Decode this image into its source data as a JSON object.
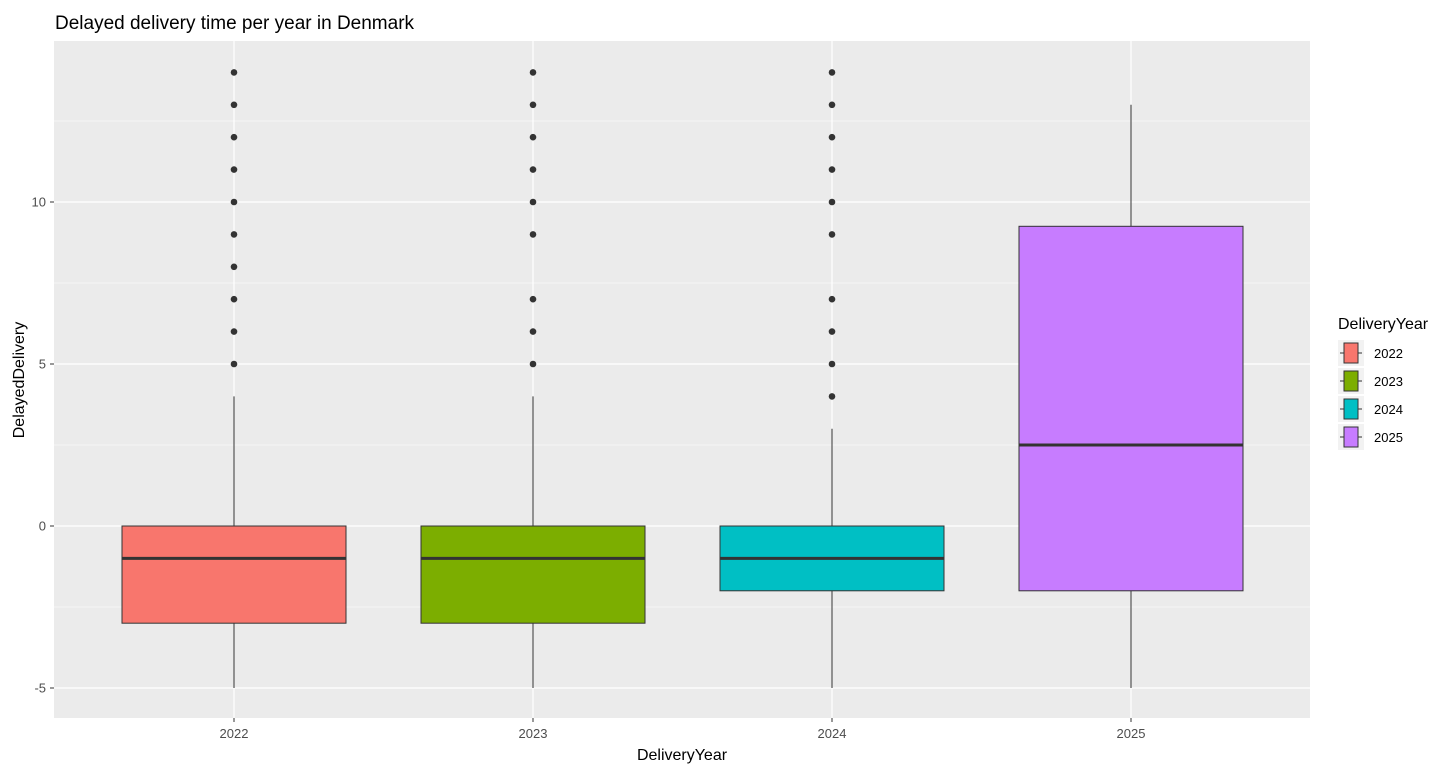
{
  "chart_data": {
    "type": "boxplot",
    "title": "Delayed delivery time per year in Denmark",
    "xlabel": "DeliveryYear",
    "ylabel": "DelayedDelivery",
    "ylim": [
      -6,
      14.5
    ],
    "y_ticks": [
      -5,
      0,
      5,
      10
    ],
    "y_tick_labels": [
      "-5",
      "0",
      "5",
      "10"
    ],
    "categories": [
      "2022",
      "2023",
      "2024",
      "2025"
    ],
    "boxes": [
      {
        "category": "2022",
        "fill": "#F8766D",
        "whisker_low": -5,
        "q1": -3,
        "median": -1,
        "q3": 0,
        "whisker_high": 4,
        "outliers": [
          5,
          6,
          7,
          8,
          9,
          10,
          11,
          12,
          13,
          14
        ]
      },
      {
        "category": "2023",
        "fill": "#7CAE00",
        "whisker_low": -5,
        "q1": -3,
        "median": -1,
        "q3": 0,
        "whisker_high": 4,
        "outliers": [
          5,
          6,
          7,
          9,
          10,
          11,
          12,
          13,
          14
        ]
      },
      {
        "category": "2024",
        "fill": "#00BFC4",
        "whisker_low": -5,
        "q1": -2,
        "median": -1,
        "q3": 0,
        "whisker_high": 3,
        "outliers": [
          4,
          5,
          6,
          7,
          9,
          10,
          11,
          12,
          13,
          14
        ]
      },
      {
        "category": "2025",
        "fill": "#C77CFF",
        "whisker_low": -5,
        "q1": -2,
        "median": 2.5,
        "q3": 9.25,
        "whisker_high": 13,
        "outliers": []
      }
    ],
    "grid": true,
    "legend": {
      "title": "DeliveryYear",
      "position": "right",
      "entries": [
        {
          "label": "2022",
          "fill": "#F8766D"
        },
        {
          "label": "2023",
          "fill": "#7CAE00"
        },
        {
          "label": "2024",
          "fill": "#00BFC4"
        },
        {
          "label": "2025",
          "fill": "#C77CFF"
        }
      ]
    },
    "colors": {
      "panel_background": "#EBEBEB",
      "grid_major": "#FFFFFF",
      "box_outline": "#333333",
      "outlier": "#333333"
    }
  }
}
